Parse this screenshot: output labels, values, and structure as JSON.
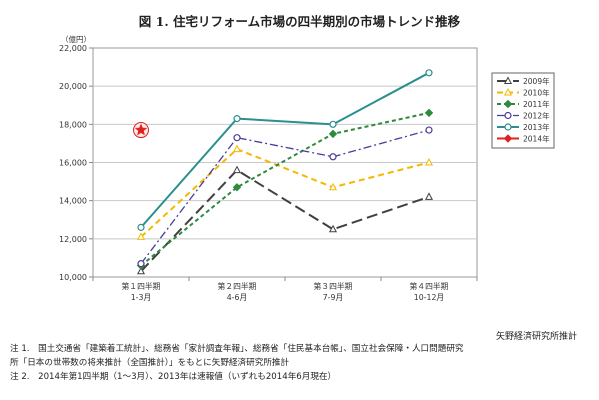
{
  "title": "図 1. 住宅リフォーム市場の四半期別の市場トレンド推移",
  "unit_label": "（億円）",
  "source": "矢野経済研究所推計",
  "notes": [
    "注 1.　国土交通省「建築着工統計」、総務省「家計調査年報」、総務省「住民基本台帳」、国立社会保障・人口問題研究",
    "所「日本の世帯数の将来推計（全国推計）」をもとに矢野経済研究所推計",
    "注 2.　2014年第1四半期（1〜3月）、2013年は速報値（いずれも2014年6月現在）"
  ],
  "chart_data": {
    "type": "line",
    "categories": [
      {
        "line1": "第１四半期",
        "line2": "1-3月"
      },
      {
        "line1": "第２四半期",
        "line2": "4-6月"
      },
      {
        "line1": "第３四半期",
        "line2": "7-9月"
      },
      {
        "line1": "第４四半期",
        "line2": "10-12月"
      }
    ],
    "ylim": [
      10000,
      22000
    ],
    "yticks": [
      10000,
      12000,
      14000,
      16000,
      18000,
      20000,
      22000
    ],
    "ytick_labels": [
      "10,000",
      "12,000",
      "14,000",
      "16,000",
      "18,000",
      "20,000",
      "22,000"
    ],
    "grid": true,
    "legend_position": "right",
    "series": [
      {
        "name": "2009年",
        "values": [
          10300,
          15600,
          12500,
          14200
        ],
        "color": "#404040",
        "dash": "11,5",
        "marker": "triangle",
        "width": 2
      },
      {
        "name": "2010年",
        "values": [
          12100,
          16700,
          14700,
          16000
        ],
        "color": "#f5b800",
        "dash": "6,4",
        "marker": "triangle",
        "width": 2
      },
      {
        "name": "2011年",
        "values": [
          10600,
          14700,
          17500,
          18600
        ],
        "color": "#2e8b3e",
        "dash": "4,3",
        "marker": "diamond",
        "width": 2
      },
      {
        "name": "2012年",
        "values": [
          10700,
          17300,
          16300,
          17700
        ],
        "color": "#4a3d9a",
        "dash": "8,3,2,3",
        "marker": "circle",
        "width": 1.3
      },
      {
        "name": "2013年",
        "values": [
          12600,
          18300,
          18000,
          20700
        ],
        "color": "#2b8f8f",
        "dash": "",
        "marker": "circle",
        "width": 2
      },
      {
        "name": "2014年",
        "values": [
          17700,
          null,
          null,
          null
        ],
        "color": "#e02020",
        "dash": "",
        "marker": "star",
        "width": 2
      }
    ]
  }
}
